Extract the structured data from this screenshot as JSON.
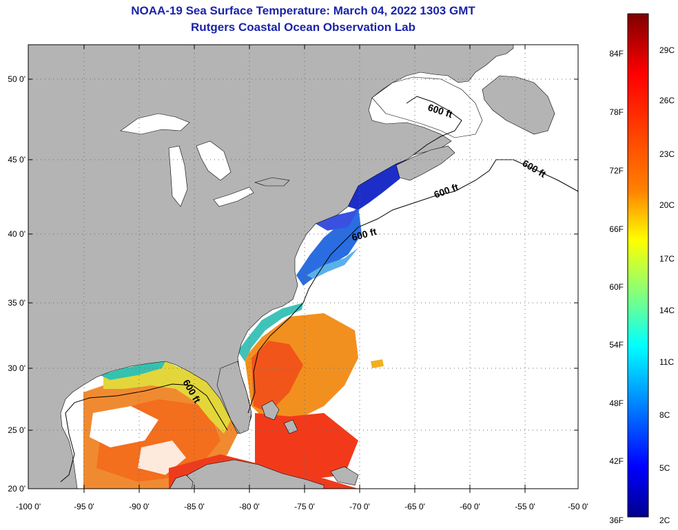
{
  "title": {
    "line1": "NOAA-19 Sea Surface Temperature:  March 04, 2022 1303 GMT",
    "line2": "Rutgers Coastal Ocean Observation Lab"
  },
  "map": {
    "lat_labels": [
      "50 0'",
      "45 0'",
      "40 0'",
      "35 0'",
      "30 0'",
      "25 0'",
      "20 0'"
    ],
    "lat_values": [
      50,
      45,
      40,
      35,
      30,
      25,
      20
    ],
    "lon_labels": [
      "-100 0'",
      "-95 0'",
      "-90 0'",
      "-85 0'",
      "-80 0'",
      "-75 0'",
      "-70 0'",
      "-65 0'",
      "-60 0'",
      "-55 0'",
      "-50 0'"
    ],
    "lon_values": [
      -100,
      -95,
      -90,
      -85,
      -80,
      -75,
      -70,
      -65,
      -60,
      -55,
      -50
    ],
    "lat_range": [
      20,
      52.5
    ],
    "lon_range": [
      -100,
      -50
    ],
    "contour_label": "600 ft",
    "land_color": "#b4b4b4",
    "no_data_color": "#ffffff"
  },
  "colorbar": {
    "fahrenheit_labels": [
      "84F",
      "78F",
      "72F",
      "66F",
      "60F",
      "54F",
      "48F",
      "42F",
      "36F"
    ],
    "celsius_labels": [
      "29C",
      "26C",
      "23C",
      "20C",
      "17C",
      "14C",
      "11C",
      "8C",
      "5C",
      "2C"
    ],
    "colors_top_to_bottom": [
      "#7f0000",
      "#ff0000",
      "#ff8000",
      "#ffff00",
      "#80ff80",
      "#00ffff",
      "#0080ff",
      "#0000ff",
      "#00008f"
    ]
  }
}
